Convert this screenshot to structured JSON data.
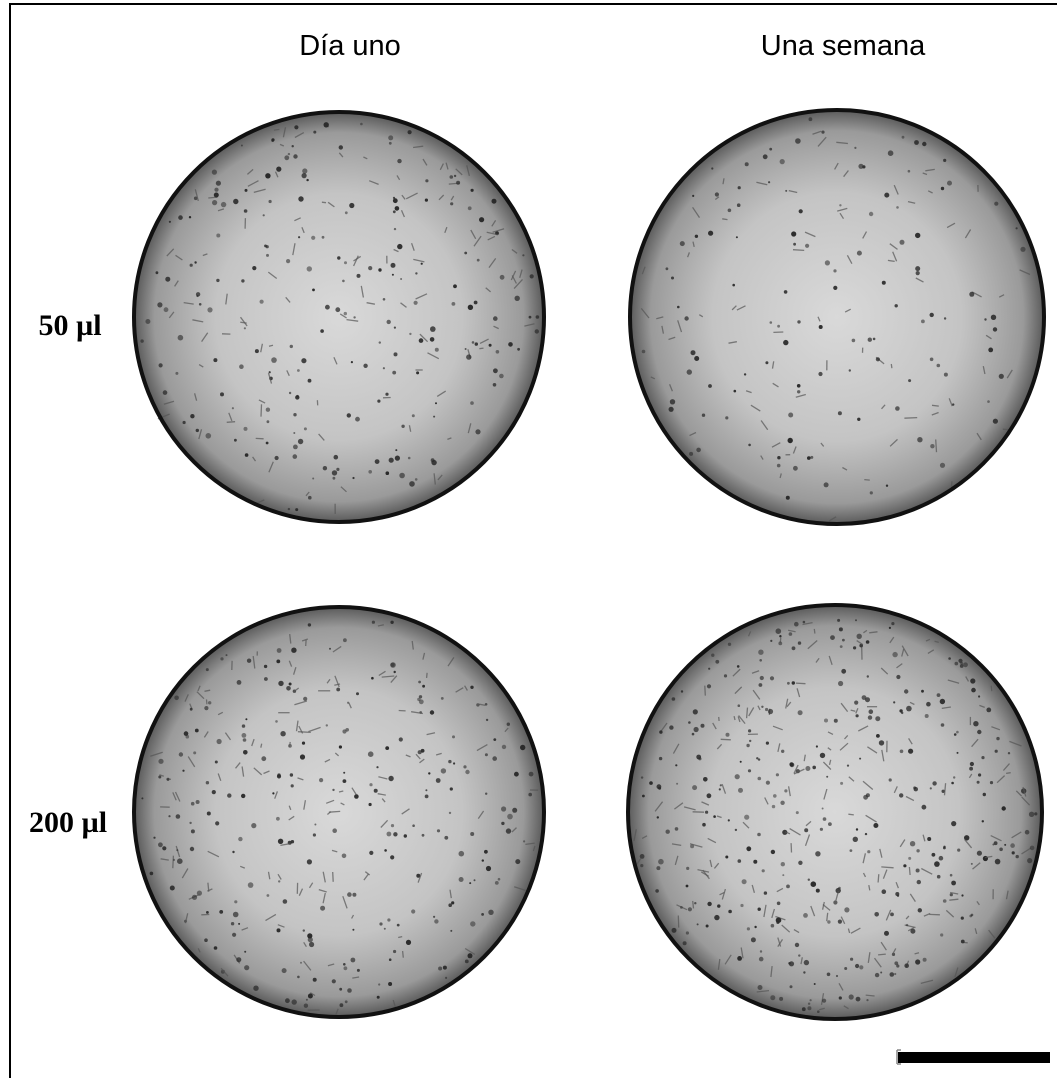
{
  "columns": [
    "Día uno",
    "Una semana"
  ],
  "rows": [
    "50 µl",
    "200 µl"
  ]
}
